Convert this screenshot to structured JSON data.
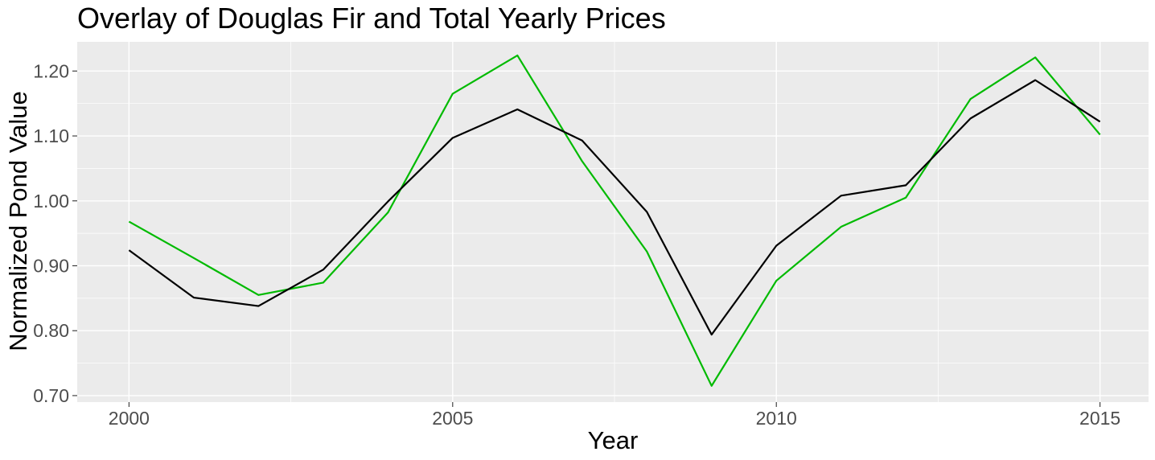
{
  "chart_data": {
    "type": "line",
    "title": "Overlay of Douglas Fir and Total Yearly Prices",
    "xlabel": "Year",
    "ylabel": "Normalized Pond Value",
    "xlim": [
      1999.2,
      2015.75
    ],
    "ylim": [
      0.69,
      1.245
    ],
    "x_ticks": [
      2000,
      2005,
      2010,
      2015
    ],
    "x_tick_labels": [
      "2000",
      "2005",
      "2010",
      "2015"
    ],
    "y_ticks": [
      0.7,
      0.8,
      0.9,
      1.0,
      1.1,
      1.2
    ],
    "y_tick_labels": [
      "0.70",
      "0.80",
      "0.90",
      "1.00",
      "1.10",
      "1.20"
    ],
    "grid": true,
    "legend": "none",
    "x": [
      2000,
      2001,
      2002,
      2003,
      2004,
      2005,
      2006,
      2007,
      2008,
      2009,
      2010,
      2011,
      2012,
      2013,
      2014,
      2015
    ],
    "series": [
      {
        "color": "#00ba00",
        "values": [
          0.968,
          0.912,
          0.855,
          0.874,
          0.982,
          1.165,
          1.224,
          1.061,
          0.922,
          0.715,
          0.877,
          0.96,
          1.005,
          1.157,
          1.221,
          1.102
        ]
      },
      {
        "color": "#000000",
        "values": [
          0.924,
          0.851,
          0.838,
          0.894,
          0.999,
          1.097,
          1.141,
          1.093,
          0.983,
          0.794,
          0.931,
          1.008,
          1.024,
          1.127,
          1.186,
          1.122
        ]
      }
    ],
    "panel_background": "#ebebeb",
    "tick_label_color": "#4d4d4d"
  }
}
